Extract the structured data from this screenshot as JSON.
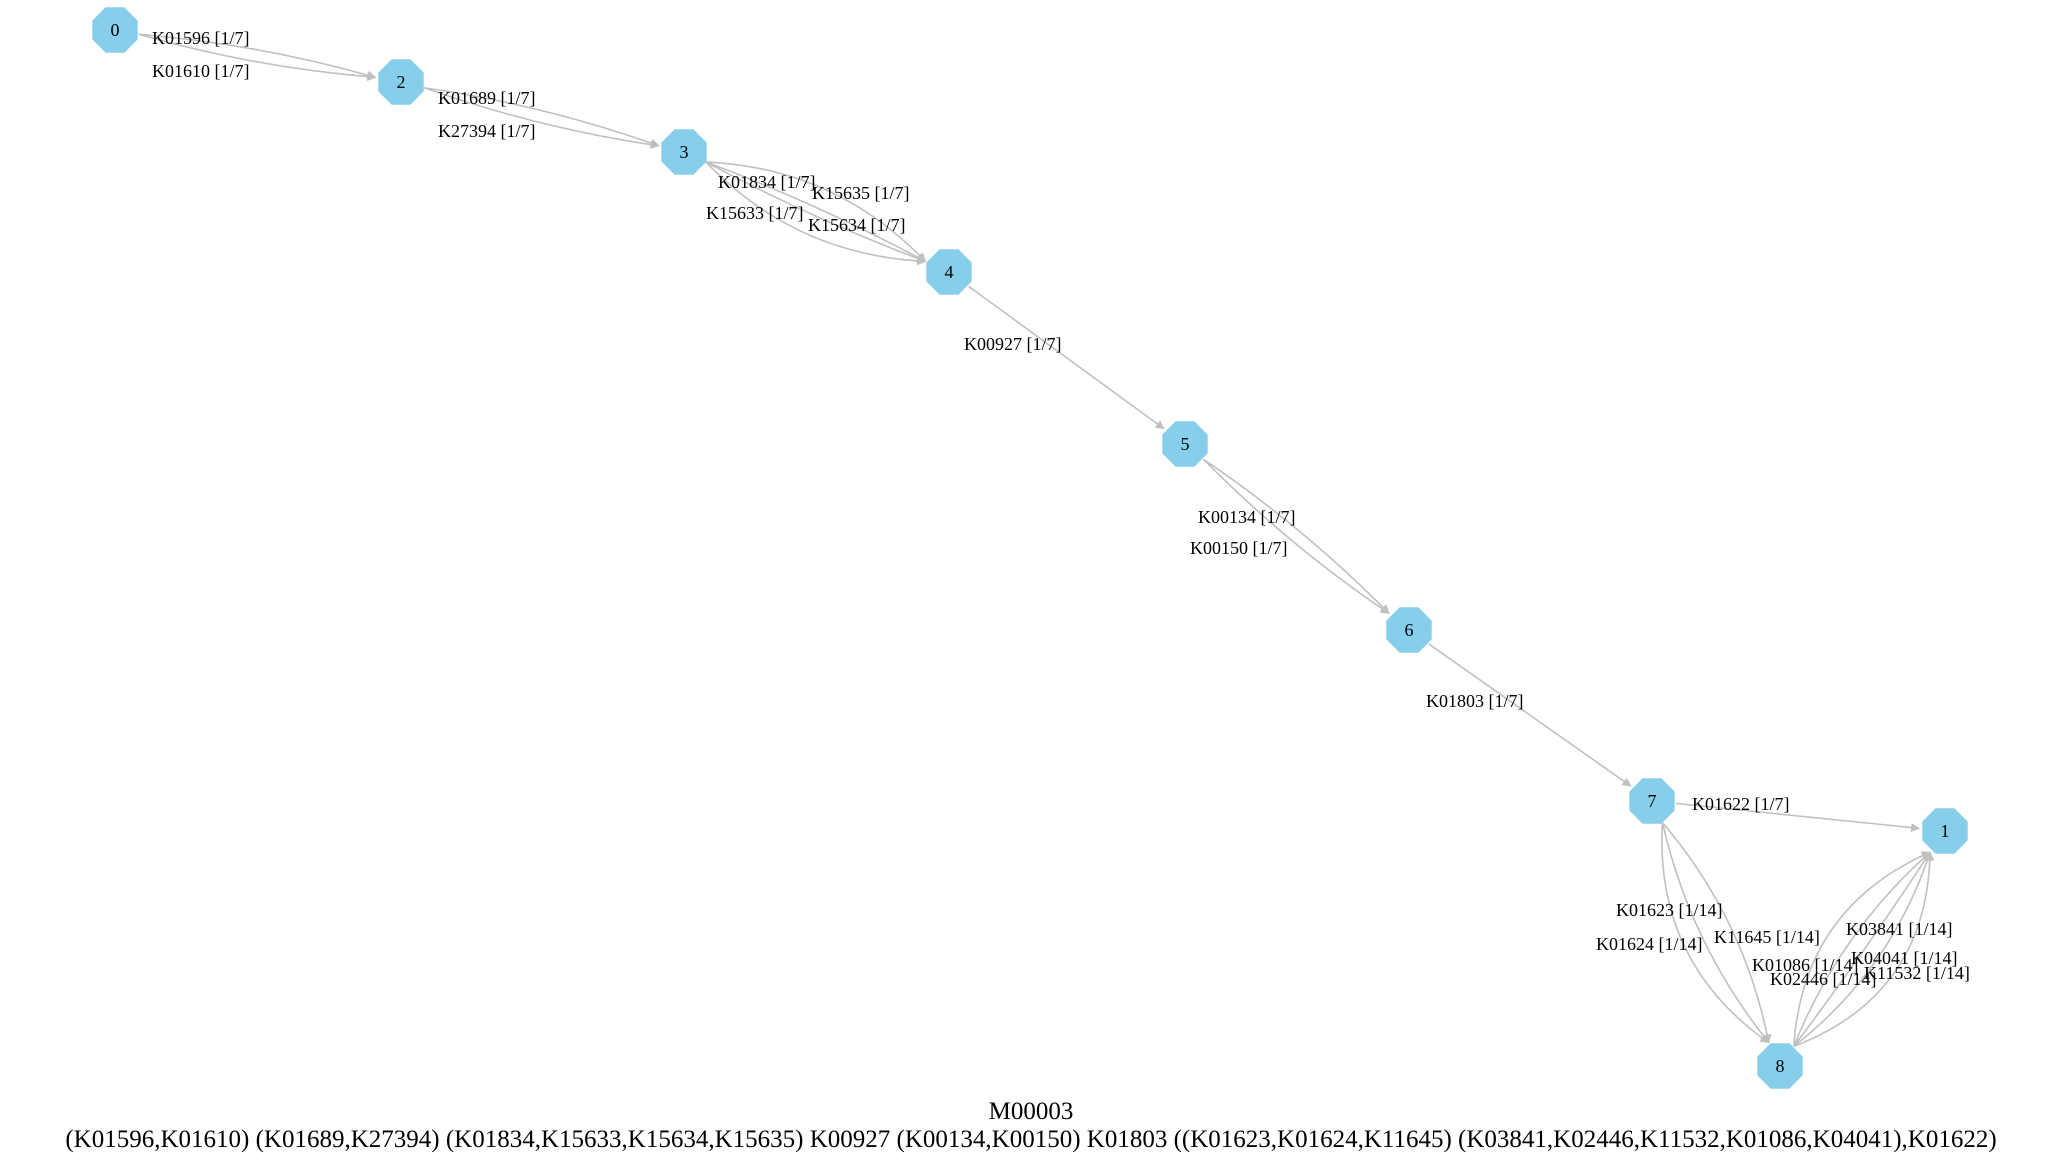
{
  "module": {
    "id": "M00003",
    "definition": "(K01596,K01610) (K01689,K27394) (K01834,K15633,K15634,K15635) K00927 (K00134,K00150) K01803 ((K01623,K01624,K11645) (K03841,K02446,K11532,K01086,K04041),K01622)"
  },
  "colors": {
    "node": "#87ceeb",
    "edge": "#c0c0c0"
  },
  "graph": {
    "nodes": [
      "0",
      "2",
      "3",
      "4",
      "5",
      "6",
      "7",
      "1",
      "8"
    ],
    "edges": [
      {
        "from": "0",
        "to": "2",
        "label": "K01596 [1/7]"
      },
      {
        "from": "0",
        "to": "2",
        "label": "K01610 [1/7]"
      },
      {
        "from": "2",
        "to": "3",
        "label": "K01689 [1/7]"
      },
      {
        "from": "2",
        "to": "3",
        "label": "K27394 [1/7]"
      },
      {
        "from": "3",
        "to": "4",
        "label": "K01834 [1/7]"
      },
      {
        "from": "3",
        "to": "4",
        "label": "K15635 [1/7]"
      },
      {
        "from": "3",
        "to": "4",
        "label": "K15633 [1/7]"
      },
      {
        "from": "3",
        "to": "4",
        "label": "K15634 [1/7]"
      },
      {
        "from": "4",
        "to": "5",
        "label": "K00927 [1/7]"
      },
      {
        "from": "5",
        "to": "6",
        "label": "K00134 [1/7]"
      },
      {
        "from": "5",
        "to": "6",
        "label": "K00150 [1/7]"
      },
      {
        "from": "6",
        "to": "7",
        "label": "K01803 [1/7]"
      },
      {
        "from": "7",
        "to": "1",
        "label": "K01622 [1/7]"
      },
      {
        "from": "7",
        "to": "8",
        "label": "K01623 [1/14]"
      },
      {
        "from": "7",
        "to": "8",
        "label": "K01624 [1/14]"
      },
      {
        "from": "7",
        "to": "8",
        "label": "K11645 [1/14]"
      },
      {
        "from": "8",
        "to": "1",
        "label": "K03841 [1/14]"
      },
      {
        "from": "8",
        "to": "1",
        "label": "K01086 [1/14]"
      },
      {
        "from": "8",
        "to": "1",
        "label": "K04041 [1/14]"
      },
      {
        "from": "8",
        "to": "1",
        "label": "K02446 [1/14]"
      },
      {
        "from": "8",
        "to": "1",
        "label": "K11532 [1/14]"
      }
    ]
  }
}
